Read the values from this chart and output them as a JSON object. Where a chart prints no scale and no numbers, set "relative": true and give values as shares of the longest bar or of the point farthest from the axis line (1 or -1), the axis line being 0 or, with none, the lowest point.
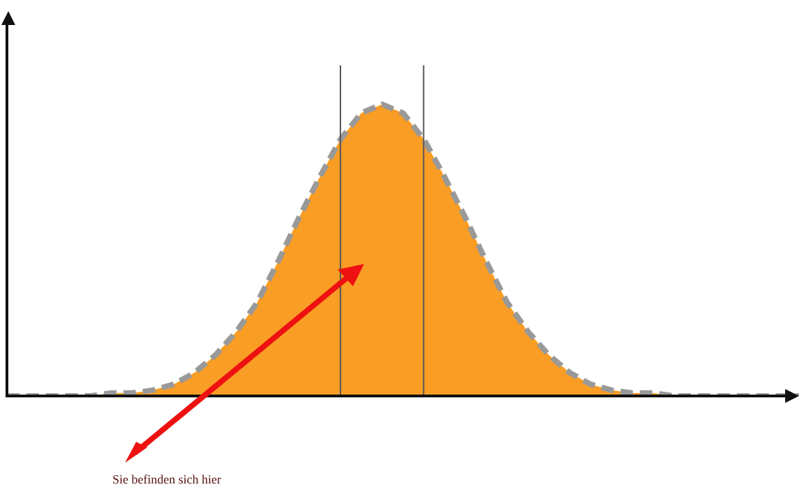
{
  "chart_data": {
    "type": "area",
    "relative": true,
    "categories": [
      null,
      null,
      null,
      null,
      null,
      null,
      null,
      null,
      null,
      null,
      null,
      null,
      null,
      null,
      null,
      null,
      null,
      null,
      null,
      null,
      null,
      null,
      null,
      null,
      null,
      null,
      null,
      null,
      null,
      null,
      null,
      null,
      null,
      null,
      null,
      null,
      null,
      null,
      null
    ],
    "series": [
      {
        "color": "#f99d25",
        "values": [
          0,
          0,
          0,
          0,
          0,
          0.01,
          0.01,
          0.02,
          0.04,
          0.08,
          0.14,
          0.22,
          0.32,
          0.46,
          0.61,
          0.75,
          0.88,
          0.97,
          1,
          0.97,
          0.88,
          0.75,
          0.61,
          0.46,
          0.32,
          0.22,
          0.14,
          0.08,
          0.04,
          0.02,
          0.01,
          0.01,
          0,
          0,
          0,
          0,
          0,
          0,
          0
        ]
      }
    ],
    "line_style": "dashed",
    "marker": "none",
    "legend": false,
    "annotations": [
      "Sie befinden sich hier"
    ]
  }
}
